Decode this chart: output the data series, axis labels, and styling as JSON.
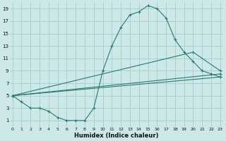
{
  "background_color": "#cce8e8",
  "grid_color": "#aacece",
  "line_color": "#2a7a70",
  "xlabel": "Humidex (Indice chaleur)",
  "yticks": [
    1,
    3,
    5,
    7,
    9,
    11,
    13,
    15,
    17,
    19
  ],
  "xticks": [
    0,
    1,
    2,
    3,
    4,
    5,
    6,
    7,
    8,
    9,
    10,
    11,
    12,
    13,
    14,
    15,
    16,
    17,
    18,
    19,
    20,
    21,
    22,
    23
  ],
  "xlim": [
    -0.3,
    23.3
  ],
  "ylim": [
    0,
    20
  ],
  "series1_x": [
    0,
    1,
    2,
    3,
    4,
    5,
    6,
    7,
    8,
    9,
    10,
    11,
    12,
    13,
    14,
    15,
    16,
    17,
    18,
    19,
    20,
    21,
    22,
    23
  ],
  "series1_y": [
    5,
    4,
    3,
    3,
    2.5,
    1.5,
    1,
    1,
    1,
    3,
    9,
    13,
    16,
    18,
    18.5,
    19.5,
    19,
    17.5,
    14,
    12,
    10.5,
    9,
    8.5,
    8
  ],
  "series2_x": [
    0,
    20,
    23
  ],
  "series2_y": [
    5,
    12,
    9
  ],
  "series3_x": [
    0,
    23
  ],
  "series3_y": [
    5,
    8.5
  ],
  "series4_x": [
    0,
    23
  ],
  "series4_y": [
    5,
    8
  ]
}
